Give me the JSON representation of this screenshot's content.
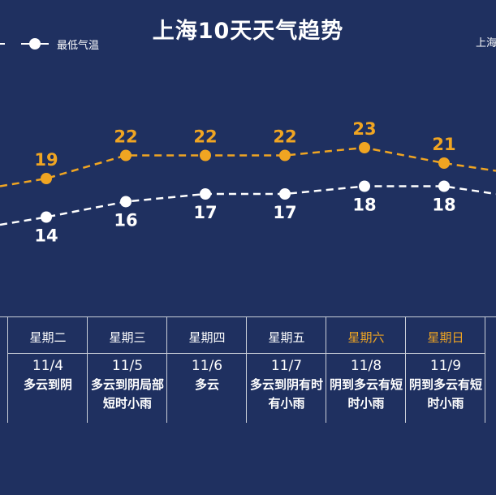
{
  "title": "上海10天天气趋势",
  "legend": {
    "low_label": "最低气温",
    "high_label_clipped": "上海"
  },
  "colors": {
    "background": "#1f3060",
    "high": "#f0a522",
    "low": "#ffffff",
    "weekend": "#f0a522"
  },
  "chart_data": {
    "type": "line",
    "x": [
      "11/4",
      "11/5",
      "11/6",
      "11/7",
      "11/8",
      "11/9"
    ],
    "series": [
      {
        "name": "",
        "color": "#f0a522",
        "values": [
          19,
          22,
          22,
          22,
          23,
          21
        ]
      },
      {
        "name": "最低气温",
        "color": "#ffffff",
        "values": [
          14,
          16,
          17,
          17,
          18,
          18
        ]
      }
    ],
    "line_style": "dashed",
    "grid": false,
    "edge_values": {
      "high": {
        "left": 18,
        "right": 20
      },
      "low": {
        "left": 13,
        "right": 17
      }
    }
  },
  "days": [
    {
      "weekday": "星期二",
      "date": "11/4",
      "condition": "多云到阴",
      "weekend": false
    },
    {
      "weekday": "星期三",
      "date": "11/5",
      "condition": "多云到阴局部短时小雨",
      "weekend": false
    },
    {
      "weekday": "星期四",
      "date": "11/6",
      "condition": "多云",
      "weekend": false
    },
    {
      "weekday": "星期五",
      "date": "11/7",
      "condition": "多云到阴有时有小雨",
      "weekend": false
    },
    {
      "weekday": "星期六",
      "date": "11/8",
      "condition": "阴到多云有短时小雨",
      "weekend": true
    },
    {
      "weekday": "星期日",
      "date": "11/9",
      "condition": "阴到多云有短时小雨",
      "weekend": true
    }
  ]
}
